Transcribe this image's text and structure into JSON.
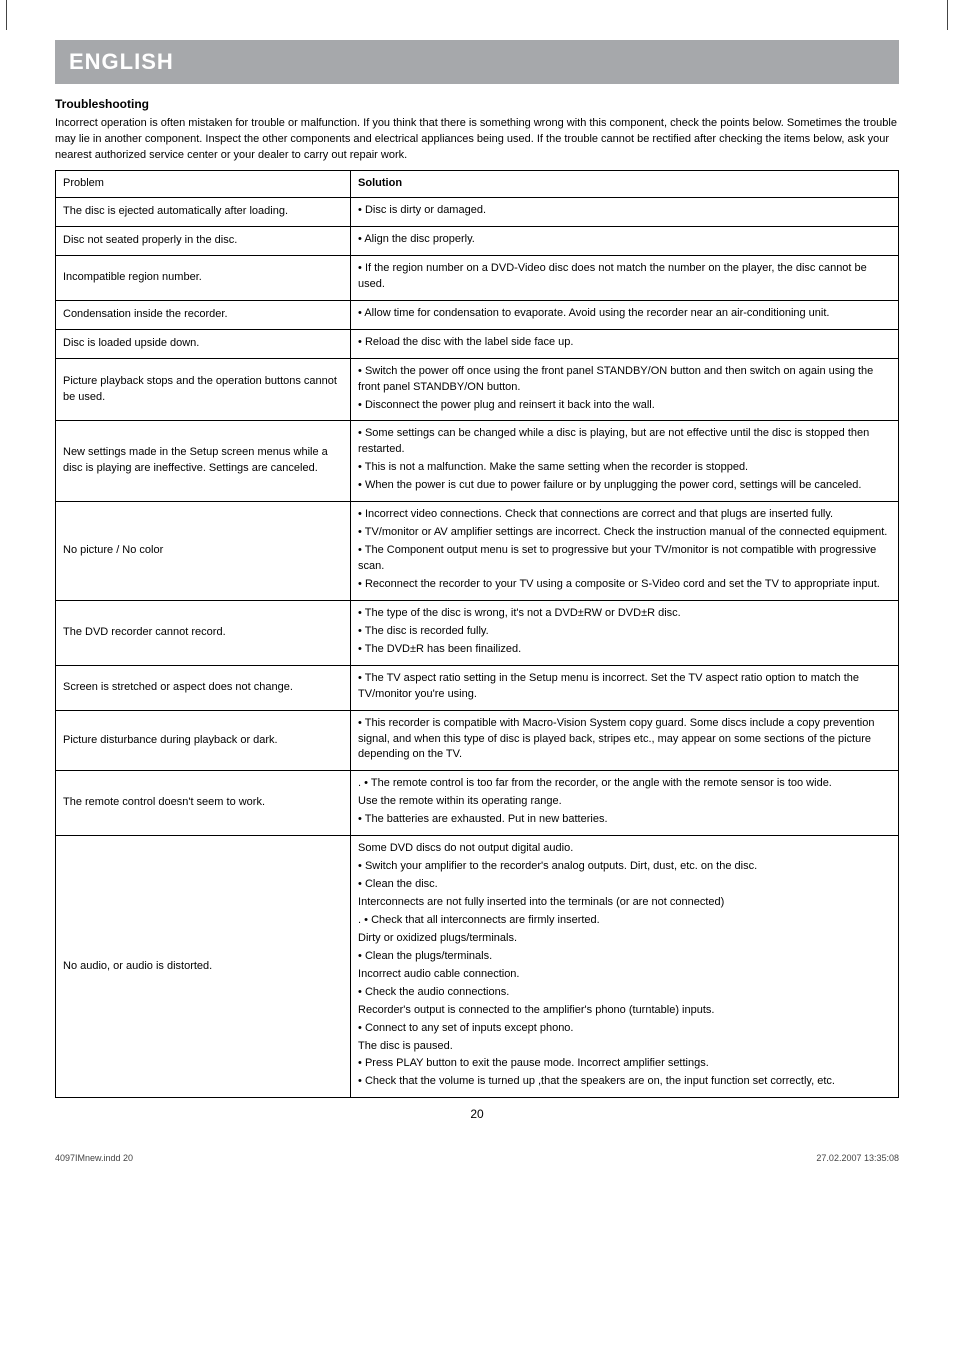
{
  "header": {
    "language_bar": "ENGLISH",
    "title": "Troubleshooting",
    "intro": "Incorrect operation is often mistaken for trouble or malfunction. If you think that there is something wrong with this component, check the points below. Sometimes the trouble may lie in another component. Inspect the other components and electrical appliances being used. If the trouble cannot be rectified after checking the items below, ask your nearest authorized service center or your dealer to carry out repair work."
  },
  "table": {
    "col_problem": "Problem",
    "col_solution": "Solution",
    "rows": [
      {
        "problem": "The disc is ejected automatically after loading.",
        "solution": [
          "• Disc is dirty or damaged."
        ]
      },
      {
        "problem": "Disc not seated properly in the disc.",
        "solution": [
          "• Align the disc properly."
        ]
      },
      {
        "problem": "Incompatible region number.",
        "solution": [
          "• If the region number on a DVD-Video disc does not match the number on the player, the disc cannot be used."
        ]
      },
      {
        "problem": "Condensation inside the recorder.",
        "solution": [
          "• Allow time for condensation to evaporate. Avoid using the recorder near an air-conditioning unit."
        ]
      },
      {
        "problem": "Disc is loaded upside down.",
        "solution": [
          "• Reload the disc with the label side face up."
        ]
      },
      {
        "problem": "Picture playback stops and the operation buttons cannot be used.",
        "solution": [
          "• Switch the power off once using the front panel STANDBY/ON button and then switch on again using the front panel STANDBY/ON button.",
          "• Disconnect the power plug and reinsert it back into the wall."
        ]
      },
      {
        "problem": "New settings made in the Setup screen menus while a disc is playing are ineffective. Settings are canceled.",
        "solution": [
          "• Some settings can be changed while a disc is playing, but are not effective until the disc is stopped then restarted.",
          "• This is not a malfunction. Make the same setting when the recorder is stopped.",
          "• When the power is cut due to power failure or by unplugging the power cord, settings will be canceled."
        ]
      },
      {
        "problem": "No picture / No color",
        "solution": [
          "• Incorrect video connections. Check that connections are correct and that plugs are inserted fully.",
          "• TV/monitor or AV amplifier settings are incorrect. Check the instruction manual of the connected equipment.",
          "• The Component output menu is set to progressive but your TV/monitor is not compatible with progressive scan.",
          "• Reconnect the recorder to your TV using a composite or S-Video cord and set the TV to appropriate input."
        ]
      },
      {
        "problem": "The DVD recorder cannot record.",
        "solution": [
          "• The type of the disc is wrong, it's not a DVD±RW or DVD±R disc.",
          "• The disc is recorded fully.",
          "• The DVD±R has been finailized."
        ]
      },
      {
        "problem": "Screen is stretched or aspect does not change.",
        "solution": [
          "• The TV aspect ratio setting in the Setup menu is incorrect. Set the TV aspect ratio option to match the TV/monitor you're using."
        ]
      },
      {
        "problem": "Picture disturbance during playback or dark.",
        "solution": [
          "• This recorder is compatible with Macro-Vision System copy guard. Some discs include a copy prevention signal, and when this type of disc is played back, stripes etc., may appear on some sections of the picture depending on the TV."
        ]
      },
      {
        "problem": "The remote control doesn't seem to work.",
        "solution": [
          ". • The remote control is too far from the recorder, or the angle with the remote sensor is too wide.",
          "Use the remote within its operating range.",
          "• The batteries are exhausted. Put in new batteries."
        ]
      },
      {
        "problem": "No audio, or audio is distorted.",
        "solution": [
          "Some DVD discs do not output digital audio.",
          "• Switch your amplifier to the recorder's analog outputs. Dirt, dust, etc. on the disc.",
          "• Clean the disc.",
          "Interconnects are not fully inserted into the terminals (or are not connected)",
          ". • Check that all interconnects are firmly inserted.",
          "Dirty or oxidized plugs/terminals.",
          "• Clean the plugs/terminals.",
          "Incorrect audio cable connection.",
          "• Check the audio connections.",
          "Recorder's output is connected to the amplifier's phono (turntable) inputs.",
          "• Connect to any set of inputs except phono.",
          "The disc is paused.",
          "• Press PLAY button to exit the pause mode. Incorrect amplifier settings.",
          "• Check that the volume is turned up ,that the speakers are on, the input function set correctly, etc."
        ]
      }
    ]
  },
  "page_number": "20",
  "footer": {
    "left": "4097IMnew.indd   20",
    "right": "27.02.2007   13:35:08"
  },
  "styles": {
    "bar_bg": "#a6a8ab",
    "bar_fg": "#ffffff",
    "border_color": "#000000",
    "body_bg": "#ffffff",
    "text_color": "#000000",
    "base_font_size": 11,
    "problem_col_width_pct": 35
  }
}
